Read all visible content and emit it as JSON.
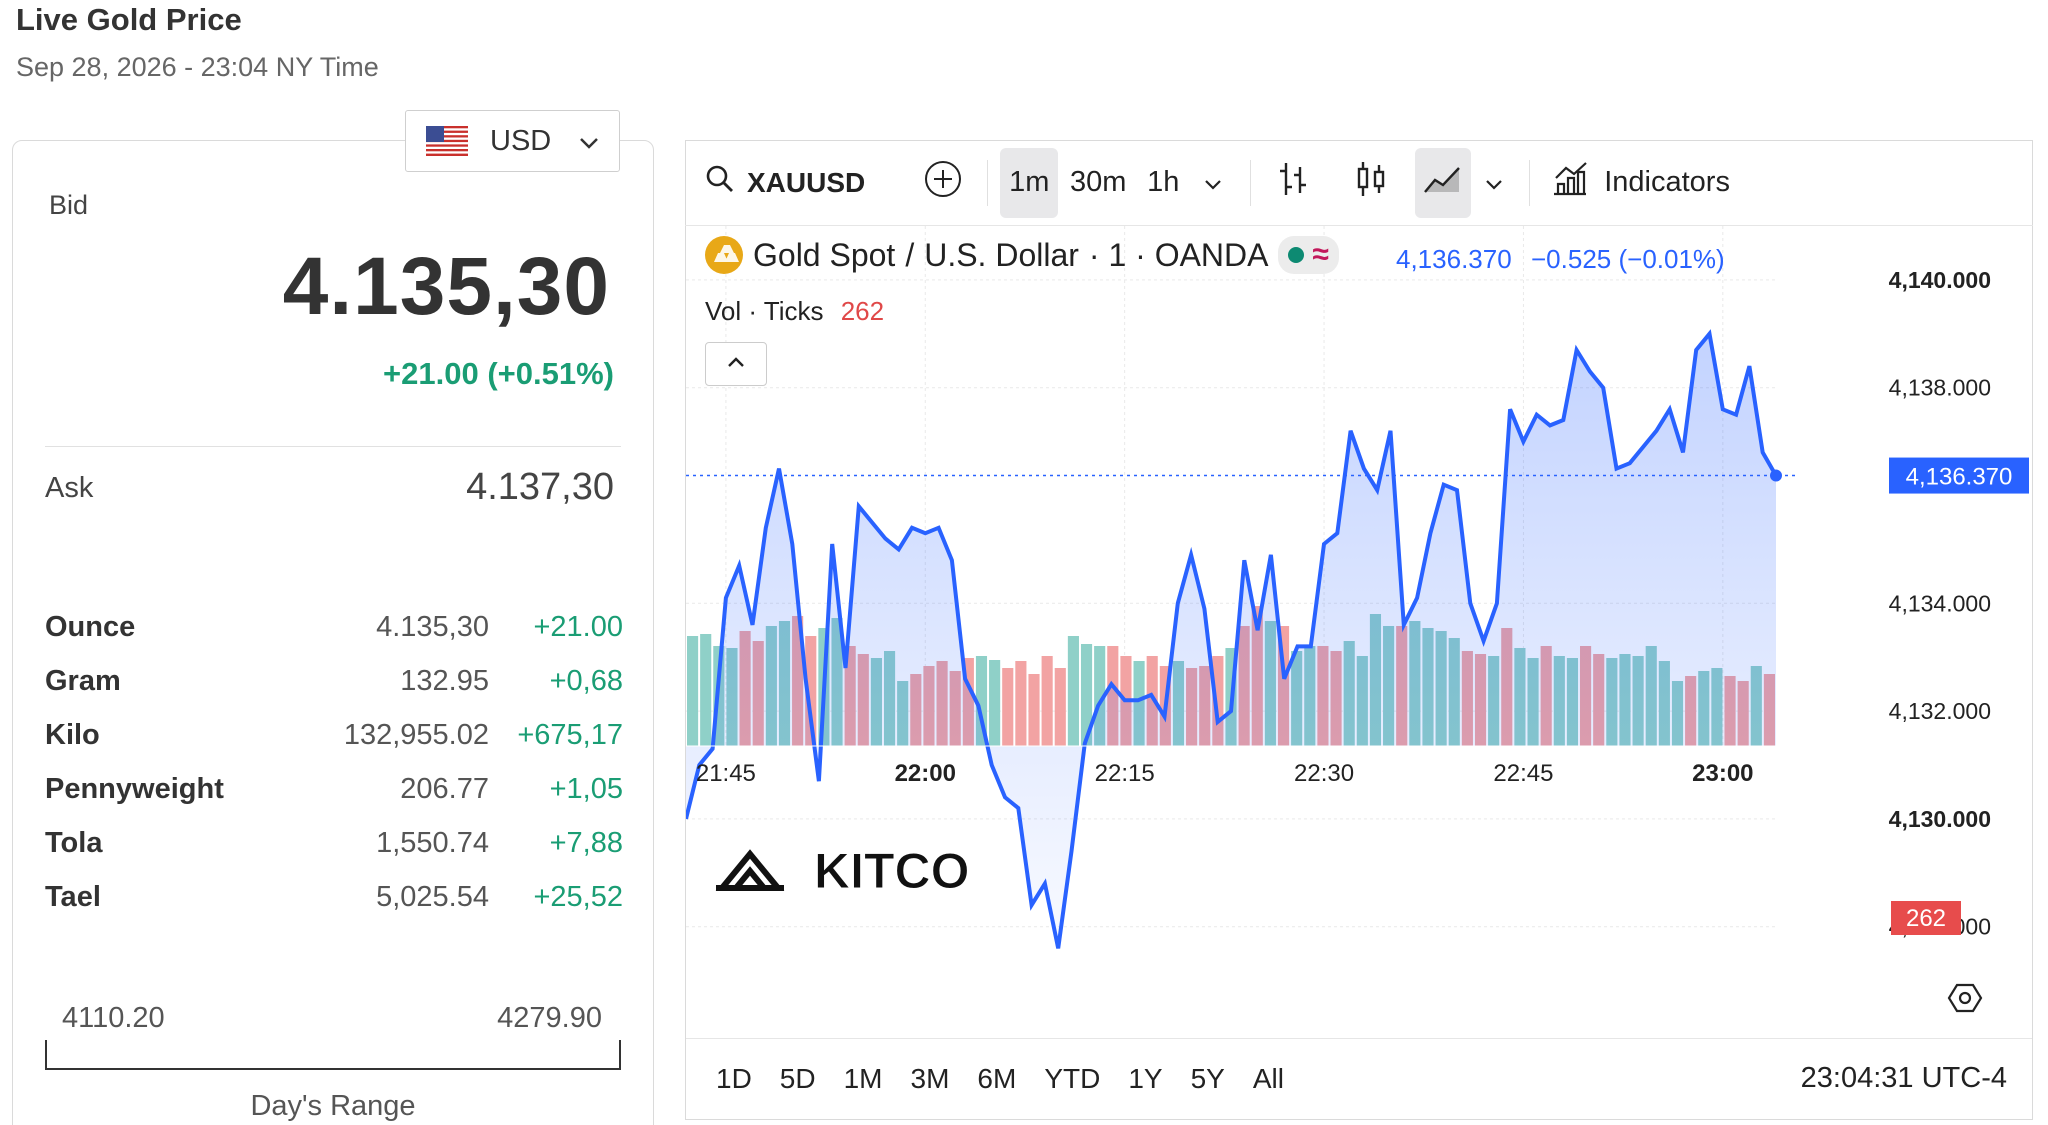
{
  "header": {
    "title": "Live Gold Price",
    "subtitle": "Sep 28, 2026 - 23:04 NY Time"
  },
  "currency": {
    "selected": "USD",
    "flag_icon": "us-flag-icon"
  },
  "quote": {
    "bid_label": "Bid",
    "bid": "4.135,30",
    "change": "+21.00 (+0.51%)",
    "ask_label": "Ask",
    "ask": "4.137,30"
  },
  "units": [
    {
      "name": "Ounce",
      "value": "4.135,30",
      "change": "+21.00"
    },
    {
      "name": "Gram",
      "value": "132.95",
      "change": "+0,68"
    },
    {
      "name": "Kilo",
      "value": "132,955.02",
      "change": "+675,17"
    },
    {
      "name": "Pennyweight",
      "value": "206.77",
      "change": "+1,05"
    },
    {
      "name": "Tola",
      "value": "1,550.74",
      "change": "+7,88"
    },
    {
      "name": "Tael",
      "value": "5,025.54",
      "change": "+25,52"
    }
  ],
  "days_range": {
    "low": "4110.20",
    "high": "4279.90",
    "label": "Day's Range"
  },
  "toolbar": {
    "symbol": "XAUUSD",
    "intervals": [
      "1m",
      "30m",
      "1h"
    ],
    "active_interval": "1m",
    "indicators_label": "Indicators"
  },
  "legend": {
    "instrument": "Gold Spot",
    "slash": "/",
    "quote_currency": "U.S. Dollar",
    "meta": "· 1 · OANDA",
    "last_price": "4,136.370",
    "change": "−0.525 (−0.01%)",
    "vol_label": "Vol · Ticks",
    "vol_value": "262"
  },
  "watermark": "KITCO",
  "price_label": "4,136.370",
  "vol_label_box": "262",
  "bottom": {
    "ranges": [
      "1D",
      "5D",
      "1M",
      "3M",
      "6M",
      "YTD",
      "1Y",
      "5Y",
      "All"
    ],
    "clock": "23:04:31 UTC-4"
  },
  "colors": {
    "line": "#2962ff",
    "up_volume": "#8fd0c8",
    "down_volume": "#f2a3a3",
    "positive": "#1a9d74"
  },
  "chart_data": {
    "type": "line",
    "x_ticks": [
      "21:45",
      "22:00",
      "22:15",
      "22:30",
      "22:45",
      "23:00"
    ],
    "y_ticks": [
      "4,140.000",
      "4,138.000",
      "4,134.000",
      "4,132.000",
      "4,130.000",
      "4,128.000"
    ],
    "y_bold_ticks": [
      "4,140.000",
      "4,130.000"
    ],
    "ylim": [
      4126.9,
      4141.0
    ],
    "x_start_minute": 1302,
    "x_end_minute": 1384,
    "last_value": 4136.37,
    "series": [
      {
        "values": [
          4130.0,
          4131.0,
          4131.3,
          4134.1,
          4134.7,
          4133.6,
          4135.4,
          4136.5,
          4135.1,
          4132.6,
          4130.7,
          4135.1,
          4132.8,
          4135.8,
          4135.5,
          4135.2,
          4135.0,
          4135.4,
          4135.3,
          4135.4,
          4134.8,
          4132.6,
          4132.1,
          4131.0,
          4130.4,
          4130.2,
          4128.4,
          4128.8,
          4127.6,
          4129.4,
          4131.4,
          4132.1,
          4132.5,
          4132.2,
          4132.2,
          4132.3,
          4131.9,
          4134.0,
          4134.9,
          4133.9,
          4131.8,
          4132.0,
          4134.8,
          4133.5,
          4134.9,
          4132.6,
          4133.2,
          4133.2,
          4135.1,
          4135.3,
          4137.2,
          4136.5,
          4136.1,
          4137.2,
          4133.6,
          4134.1,
          4135.3,
          4136.2,
          4136.1,
          4134.0,
          4133.3,
          4134.0,
          4137.6,
          4137.0,
          4137.5,
          4137.3,
          4137.4,
          4138.7,
          4138.3,
          4138.0,
          4136.5,
          4136.6,
          4136.9,
          4137.2,
          4137.6,
          4136.8,
          4138.7,
          4139.0,
          4137.6,
          4137.5,
          4138.4,
          4136.8,
          4136.37
        ],
        "volume": [
          110,
          112,
          100,
          98,
          115,
          105,
          120,
          125,
          130,
          110,
          118,
          128,
          100,
          92,
          88,
          95,
          65,
          72,
          80,
          85,
          75,
          88,
          90,
          86,
          78,
          85,
          72,
          90,
          78,
          110,
          102,
          100,
          100,
          90,
          85,
          90,
          80,
          85,
          78,
          80,
          90,
          98,
          120,
          140,
          125,
          120,
          95,
          100,
          100,
          95,
          105,
          90,
          132,
          120,
          120,
          125,
          118,
          115,
          108,
          95,
          92,
          90,
          118,
          98,
          88,
          100,
          90,
          88,
          100,
          92,
          88,
          92,
          90,
          100,
          85,
          65,
          70,
          75,
          78,
          70,
          65,
          80,
          72
        ],
        "volume_up": [
          1,
          1,
          1,
          1,
          0,
          0,
          1,
          1,
          0,
          0,
          1,
          1,
          0,
          0,
          1,
          1,
          1,
          0,
          0,
          0,
          0,
          0,
          1,
          1,
          0,
          0,
          0,
          0,
          0,
          1,
          1,
          1,
          0,
          0,
          1,
          0,
          0,
          1,
          0,
          0,
          0,
          1,
          0,
          0,
          1,
          0,
          1,
          1,
          0,
          0,
          1,
          1,
          1,
          1,
          0,
          1,
          1,
          1,
          1,
          0,
          0,
          1,
          0,
          1,
          1,
          0,
          1,
          1,
          0,
          0,
          1,
          1,
          1,
          1,
          1,
          1,
          0,
          1,
          1,
          0,
          0,
          1,
          0
        ]
      }
    ]
  }
}
